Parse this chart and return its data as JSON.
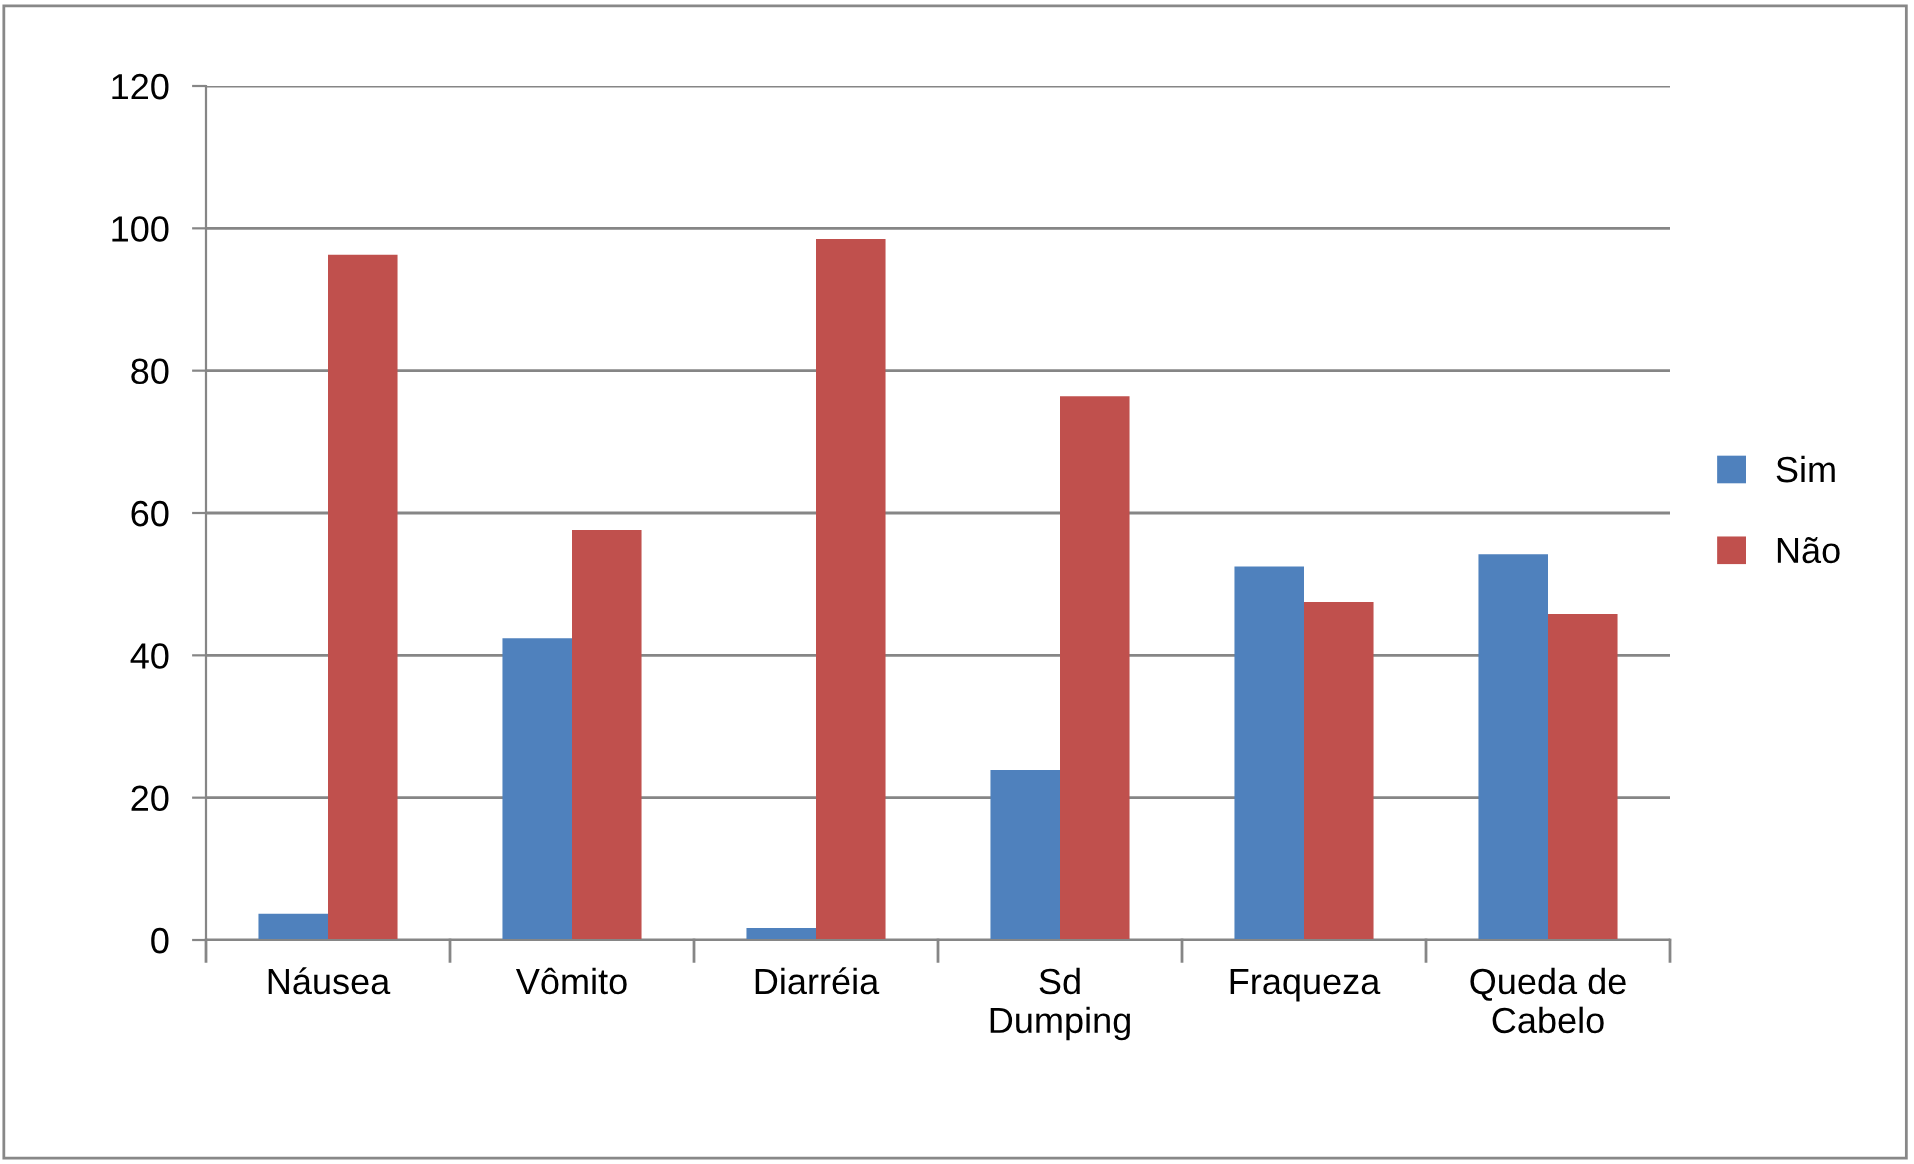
{
  "chart_data": {
    "type": "bar",
    "categories": [
      "Náusea",
      "Vômito",
      "Diarréia",
      "Sd\nDumping",
      "Fraqueza",
      "Queda de\nCabelo"
    ],
    "series": [
      {
        "name": "Sim",
        "color": "#4f81bd",
        "values": [
          3.7,
          42.4,
          1.7,
          23.9,
          52.5,
          54.2
        ]
      },
      {
        "name": "Não",
        "color": "#c0504d",
        "values": [
          96.3,
          57.6,
          98.5,
          76.4,
          47.5,
          45.8
        ]
      }
    ],
    "ylim": [
      0,
      120
    ],
    "yticks": [
      0,
      20,
      40,
      60,
      80,
      100,
      120
    ],
    "grid": "y",
    "legend": "right"
  }
}
